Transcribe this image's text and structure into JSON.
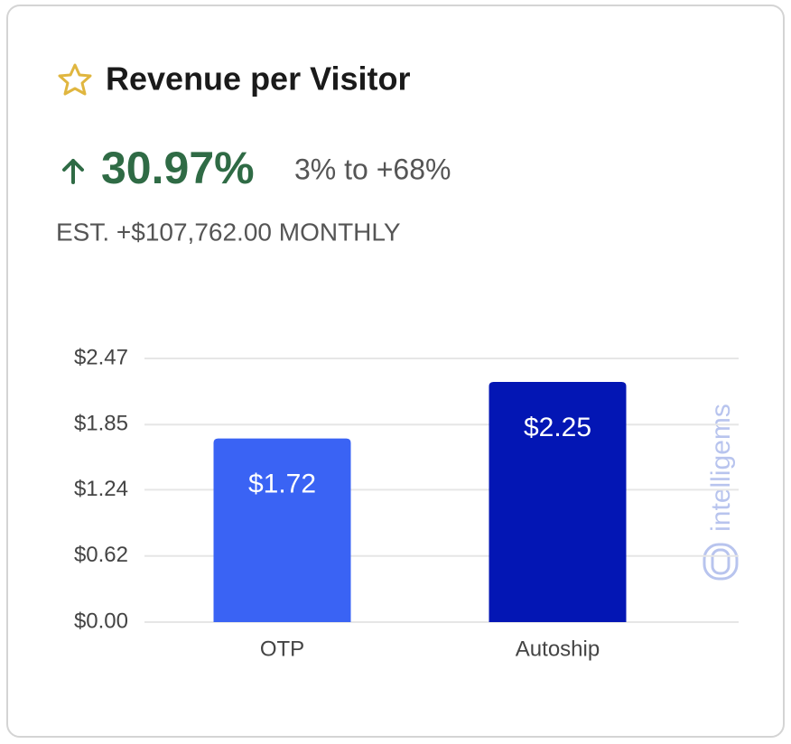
{
  "header": {
    "title": "Revenue per Visitor",
    "lift": "30.97%",
    "range": "3% to +68%",
    "estimate": "EST. +$107,762.00 MONTHLY"
  },
  "brand": "intelligems",
  "chart_data": {
    "type": "bar",
    "categories": [
      "OTP",
      "Autoship"
    ],
    "values": [
      1.72,
      2.25
    ],
    "value_labels": [
      "$1.72",
      "$2.25"
    ],
    "colors": [
      "#3a63f4",
      "#0316b4"
    ],
    "ylim": [
      0,
      2.47
    ],
    "yticks": [
      {
        "value": 0,
        "label": "$0.00"
      },
      {
        "value": 0.62,
        "label": "$0.62"
      },
      {
        "value": 1.24,
        "label": "$1.24"
      },
      {
        "value": 1.85,
        "label": "$1.85"
      },
      {
        "value": 2.47,
        "label": "$2.47"
      }
    ],
    "grid": true
  }
}
